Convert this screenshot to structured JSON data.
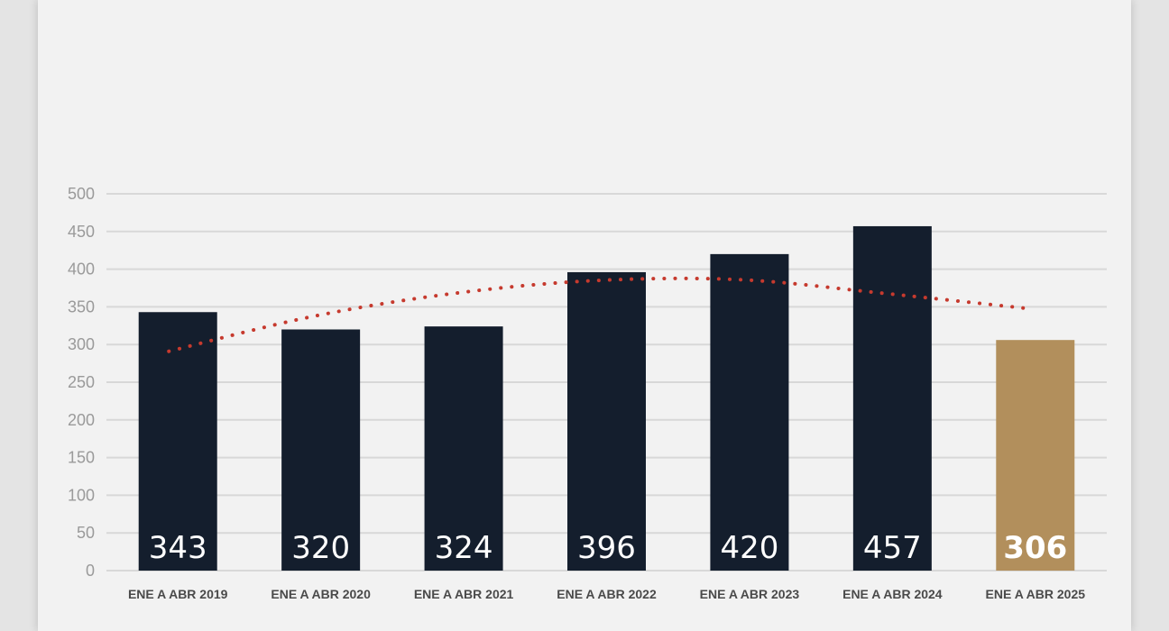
{
  "chart_data": {
    "type": "bar",
    "categories": [
      "ENE A ABR 2019",
      "ENE A ABR 2020",
      "ENE A ABR 2021",
      "ENE A ABR 2022",
      "ENE A ABR 2023",
      "ENE A ABR 2024",
      "ENE A ABR 2025"
    ],
    "values": [
      343,
      320,
      324,
      396,
      420,
      457,
      306
    ],
    "ylim": [
      0,
      500
    ],
    "yticks": [
      0,
      50,
      100,
      150,
      200,
      250,
      300,
      350,
      400,
      450,
      500
    ],
    "grid": true,
    "trendline": {
      "style": "dotted",
      "kind": "polynomial",
      "approx_values": [
        291,
        337,
        368,
        385,
        386,
        368,
        348
      ]
    },
    "colors": {
      "bar": "#141e2d",
      "highlight_bar": "#b28f5c",
      "trend": "#c63a2e",
      "grid": "#d8d8d8",
      "value_label": "#ffffff"
    },
    "highlight_index": 6
  }
}
